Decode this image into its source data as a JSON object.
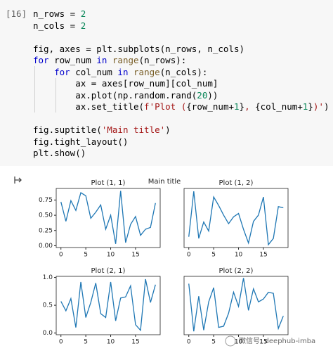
{
  "cell": {
    "prompt": "[16]",
    "code": [
      [
        {
          "text": "n_rows = "
        },
        {
          "text": "2",
          "color": "#098658"
        }
      ],
      [
        {
          "text": "n_cols = "
        },
        {
          "text": "2",
          "color": "#098658"
        }
      ],
      [],
      [
        {
          "text": "fig, axes = plt.subplots(n_rows, n_cols)"
        }
      ],
      [
        {
          "text": "for",
          "color": "#0000cc"
        },
        {
          "text": " row_num "
        },
        {
          "text": "in",
          "color": "#0000cc"
        },
        {
          "text": " "
        },
        {
          "text": "range",
          "color": "#795e26"
        },
        {
          "text": "(n_rows):"
        }
      ],
      [
        {
          "text": "    "
        },
        {
          "text": "for",
          "color": "#0000cc"
        },
        {
          "text": " col_num "
        },
        {
          "text": "in",
          "color": "#0000cc"
        },
        {
          "text": " "
        },
        {
          "text": "range",
          "color": "#795e26"
        },
        {
          "text": "(n_cols):"
        }
      ],
      [
        {
          "text": "        ax = axes[row_num][col_num]"
        }
      ],
      [
        {
          "text": "        ax.plot(np.random.rand("
        },
        {
          "text": "20",
          "color": "#098658"
        },
        {
          "text": "))"
        }
      ],
      [
        {
          "text": "        ax.set_title("
        },
        {
          "text": "f'Plot (",
          "color": "#a31515"
        },
        {
          "text": "{row_num+"
        },
        {
          "text": "1",
          "color": "#098658"
        },
        {
          "text": "}"
        },
        {
          "text": ", ",
          "color": "#a31515"
        },
        {
          "text": "{col_num+"
        },
        {
          "text": "1",
          "color": "#098658"
        },
        {
          "text": "}"
        },
        {
          "text": ")'",
          "color": "#a31515"
        },
        {
          "text": ")"
        }
      ],
      [],
      [
        {
          "text": "fig.suptitle("
        },
        {
          "text": "'Main title'",
          "color": "#a31515"
        },
        {
          "text": ")"
        }
      ],
      [
        {
          "text": "fig.tight_layout()"
        }
      ],
      [
        {
          "text": "plt.show()"
        }
      ]
    ]
  },
  "figure": {
    "suptitle": "Main title"
  },
  "watermark": "微信号: deephub-imba",
  "chart_data": [
    {
      "type": "line",
      "title": "Plot (1, 1)",
      "x": [
        0,
        1,
        2,
        3,
        4,
        5,
        6,
        7,
        8,
        9,
        10,
        11,
        12,
        13,
        14,
        15,
        16,
        17,
        18,
        19
      ],
      "series": [
        {
          "color": "#1f77b4",
          "values": [
            0.72,
            0.4,
            0.74,
            0.58,
            0.87,
            0.82,
            0.45,
            0.55,
            0.67,
            0.27,
            0.5,
            0.03,
            0.9,
            0.05,
            0.35,
            0.48,
            0.17,
            0.27,
            0.3,
            0.7
          ]
        }
      ],
      "xlim": [
        -0.95,
        19.95
      ],
      "xticks": [
        0,
        5,
        10,
        15
      ],
      "ylim": [
        -0.03,
        0.94
      ],
      "yticks": [
        {
          "value": 0,
          "label": "0.00"
        },
        {
          "value": 0.25,
          "label": "0.25"
        },
        {
          "value": 0.5,
          "label": "0.50"
        },
        {
          "value": 0.75,
          "label": "0.75"
        }
      ]
    },
    {
      "type": "line",
      "title": "Plot (1, 2)",
      "x": [
        0,
        1,
        2,
        3,
        4,
        5,
        6,
        7,
        8,
        9,
        10,
        11,
        12,
        13,
        14,
        15,
        16,
        17,
        18,
        19
      ],
      "series": [
        {
          "color": "#1f77b4",
          "values": [
            0.17,
            0.97,
            0.14,
            0.43,
            0.27,
            0.87,
            0.72,
            0.55,
            0.4,
            0.52,
            0.58,
            0.3,
            0.06,
            0.44,
            0.55,
            0.87,
            0.03,
            0.14,
            0.7,
            0.68
          ]
        }
      ],
      "xlim": [
        -0.95,
        19.95
      ],
      "xticks": [
        0,
        5,
        10,
        15
      ],
      "ylim": [
        -0.02,
        1.02
      ]
    },
    {
      "type": "line",
      "title": "Plot (2, 1)",
      "x": [
        0,
        1,
        2,
        3,
        4,
        5,
        6,
        7,
        8,
        9,
        10,
        11,
        12,
        13,
        14,
        15,
        16,
        17,
        18,
        19
      ],
      "series": [
        {
          "color": "#1f77b4",
          "values": [
            0.57,
            0.4,
            0.62,
            0.1,
            0.92,
            0.28,
            0.55,
            0.9,
            0.35,
            0.28,
            0.92,
            0.22,
            0.63,
            0.65,
            0.85,
            0.15,
            0.05,
            0.97,
            0.55,
            0.87
          ]
        }
      ],
      "xlim": [
        -0.95,
        19.95
      ],
      "xticks": [
        0,
        5,
        10,
        15
      ],
      "ylim": [
        -0.03,
        1.02
      ],
      "yticks": [
        {
          "value": 0,
          "label": "0.0"
        },
        {
          "value": 0.5,
          "label": "0.5"
        },
        {
          "value": 1,
          "label": "1.0"
        }
      ]
    },
    {
      "type": "line",
      "title": "Plot (2, 2)",
      "x": [
        0,
        1,
        2,
        3,
        4,
        5,
        6,
        7,
        8,
        9,
        10,
        11,
        12,
        13,
        14,
        15,
        16,
        17,
        18,
        19
      ],
      "series": [
        {
          "color": "#1f77b4",
          "values": [
            0.87,
            0.03,
            0.65,
            0.05,
            0.55,
            0.8,
            0.1,
            0.12,
            0.35,
            0.72,
            0.47,
            0.97,
            0.4,
            0.78,
            0.55,
            0.6,
            0.72,
            0.7,
            0.08,
            0.3
          ]
        }
      ],
      "xlim": [
        -0.95,
        19.95
      ],
      "xticks": [
        0,
        5,
        10,
        15
      ],
      "ylim": [
        -0.03,
        1.0
      ]
    }
  ]
}
